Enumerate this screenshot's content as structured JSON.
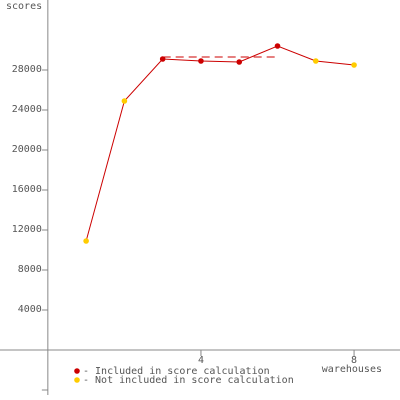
{
  "chart_data": {
    "type": "line",
    "y_label": "scores",
    "x_label": "warehouses",
    "x": [
      1,
      2,
      3,
      4,
      5,
      6,
      7,
      8
    ],
    "values": [
      10900,
      24900,
      29100,
      28900,
      28800,
      30400,
      28900,
      28500
    ],
    "included": [
      false,
      false,
      true,
      true,
      true,
      true,
      false,
      false
    ],
    "line_color": "#cc0000",
    "score": 29300,
    "score_range": [
      3,
      6
    ],
    "legend": [
      {
        "name": "- Included in score calculation",
        "color": "#cc0000"
      },
      {
        "name": "- Not included in score calculation",
        "color": "#ffcc00"
      }
    ],
    "xlim": [
      -1.25,
      9.2
    ],
    "ylim": [
      -4500,
      35000
    ],
    "xticks": [
      4,
      8
    ],
    "yticks": [
      4000,
      8000,
      12000,
      16000,
      20000,
      24000,
      28000
    ],
    "unlabeled_yticks": [
      -4000
    ]
  }
}
